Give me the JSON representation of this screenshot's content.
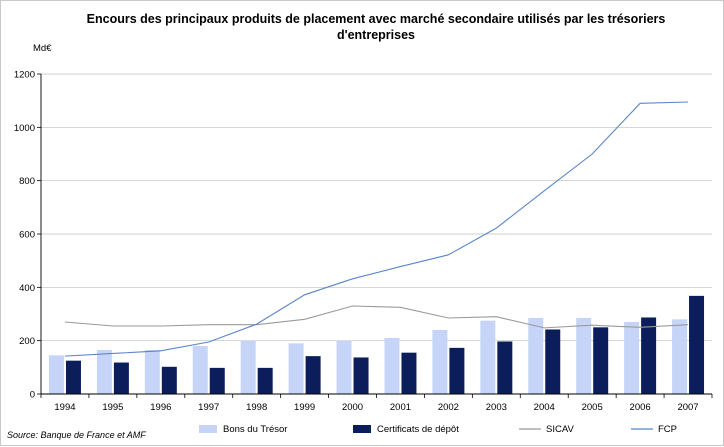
{
  "chart_data": {
    "type": "bar",
    "title": "Encours des principaux produits de placement avec marché secondaire utilisés par les trésoriers d'entreprises",
    "title_lines": [
      "Encours des principaux produits de placement avec marché secondaire utilisés par les trésoriers",
      "d'entreprises"
    ],
    "ylabel": "Md€",
    "ylim": [
      0,
      1200
    ],
    "yticks": [
      "0",
      "200",
      "400",
      "600",
      "800",
      "1000",
      "1200"
    ],
    "grid": true,
    "legend_position": "bottom",
    "source": "Source: Banque de France et AMF",
    "categories": [
      "1994",
      "1995",
      "1996",
      "1997",
      "1998",
      "1999",
      "2000",
      "2001",
      "2002",
      "2003",
      "2004",
      "2005",
      "2006",
      "2007"
    ],
    "series": [
      {
        "name": "Bons du Trésor",
        "kind": "bar",
        "color": "#c6d5f7",
        "values": [
          145,
          165,
          165,
          180,
          200,
          190,
          200,
          210,
          240,
          275,
          285,
          285,
          270,
          280
        ]
      },
      {
        "name": "Certificats de dépôt",
        "kind": "bar",
        "color": "#0b1e5b",
        "values": [
          125,
          118,
          102,
          98,
          98,
          142,
          137,
          155,
          173,
          197,
          242,
          250,
          287,
          368
        ]
      },
      {
        "name": "SICAV",
        "kind": "line",
        "color": "#9a9a9a",
        "values": [
          270,
          255,
          255,
          260,
          260,
          280,
          330,
          325,
          285,
          290,
          248,
          258,
          250,
          260
        ]
      },
      {
        "name": "FCP",
        "kind": "line",
        "color": "#5b86c6",
        "values": [
          142,
          152,
          162,
          195,
          262,
          372,
          432,
          478,
          522,
          622,
          762,
          900,
          1090,
          1095
        ]
      }
    ]
  }
}
